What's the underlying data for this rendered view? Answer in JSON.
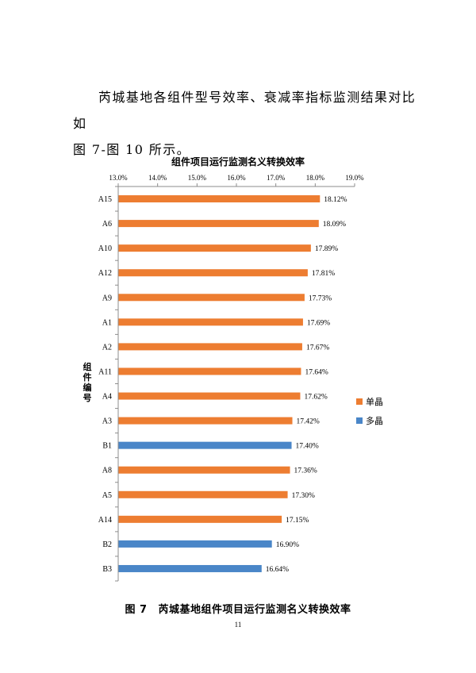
{
  "paragraph": {
    "line1": "芮城基地各组件型号效率、衰减率指标监测结果对比如",
    "line2": "图 7-图 10 所示。"
  },
  "chart_data": {
    "type": "bar",
    "orientation": "horizontal",
    "title": "组件项目运行监测名义转换效率",
    "ylabel": "组件编号",
    "xlim": [
      13.0,
      19.0
    ],
    "x_ticks": [
      "13.0%",
      "14.0%",
      "15.0%",
      "16.0%",
      "17.0%",
      "18.0%",
      "19.0%"
    ],
    "x_axis_position": "top",
    "grid": false,
    "legend_position": "right",
    "series": [
      {
        "name": "单晶",
        "color": "#ED7D31"
      },
      {
        "name": "多晶",
        "color": "#4A86C8"
      }
    ],
    "bars": [
      {
        "category": "A15",
        "value": 18.12,
        "label": "18.12%",
        "series": "单晶"
      },
      {
        "category": "A6",
        "value": 18.09,
        "label": "18.09%",
        "series": "单晶"
      },
      {
        "category": "A10",
        "value": 17.89,
        "label": "17.89%",
        "series": "单晶"
      },
      {
        "category": "A12",
        "value": 17.81,
        "label": "17.81%",
        "series": "单晶"
      },
      {
        "category": "A9",
        "value": 17.73,
        "label": "17.73%",
        "series": "单晶"
      },
      {
        "category": "A1",
        "value": 17.69,
        "label": "17.69%",
        "series": "单晶"
      },
      {
        "category": "A2",
        "value": 17.67,
        "label": "17.67%",
        "series": "单晶"
      },
      {
        "category": "A11",
        "value": 17.64,
        "label": "17.64%",
        "series": "单晶"
      },
      {
        "category": "A4",
        "value": 17.62,
        "label": "17.62%",
        "series": "单晶"
      },
      {
        "category": "A3",
        "value": 17.42,
        "label": "17.42%",
        "series": "单晶"
      },
      {
        "category": "B1",
        "value": 17.4,
        "label": "17.40%",
        "series": "多晶"
      },
      {
        "category": "A8",
        "value": 17.36,
        "label": "17.36%",
        "series": "单晶"
      },
      {
        "category": "A5",
        "value": 17.3,
        "label": "17.30%",
        "series": "单晶"
      },
      {
        "category": "A14",
        "value": 17.15,
        "label": "17.15%",
        "series": "单晶"
      },
      {
        "category": "B2",
        "value": 16.9,
        "label": "16.90%",
        "series": "多晶"
      },
      {
        "category": "B3",
        "value": 16.64,
        "label": "16.64%",
        "series": "多晶"
      }
    ]
  },
  "caption": {
    "number": "图 7",
    "text": "芮城基地组件项目运行监测名义转换效率"
  },
  "page_number": "11"
}
